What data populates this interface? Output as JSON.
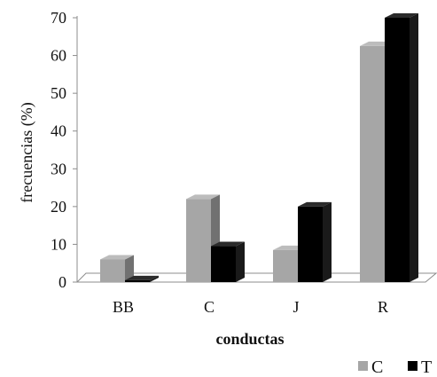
{
  "chart_data": {
    "type": "bar",
    "categories": [
      "BB",
      "C",
      "J",
      "R"
    ],
    "series": [
      {
        "name": "C",
        "values": [
          6,
          22,
          8.5,
          62.5
        ]
      },
      {
        "name": "T",
        "values": [
          0.5,
          9.5,
          20,
          70
        ]
      }
    ],
    "xlabel": "conductas",
    "ylabel": "frecuencias (%)",
    "ylim": [
      0,
      70
    ],
    "yticks": [
      0,
      10,
      20,
      30,
      40,
      50,
      60,
      70
    ],
    "legend": "bottom-right",
    "grid": false,
    "colors": {
      "C": "#a6a6a6",
      "T": "#000000"
    }
  }
}
